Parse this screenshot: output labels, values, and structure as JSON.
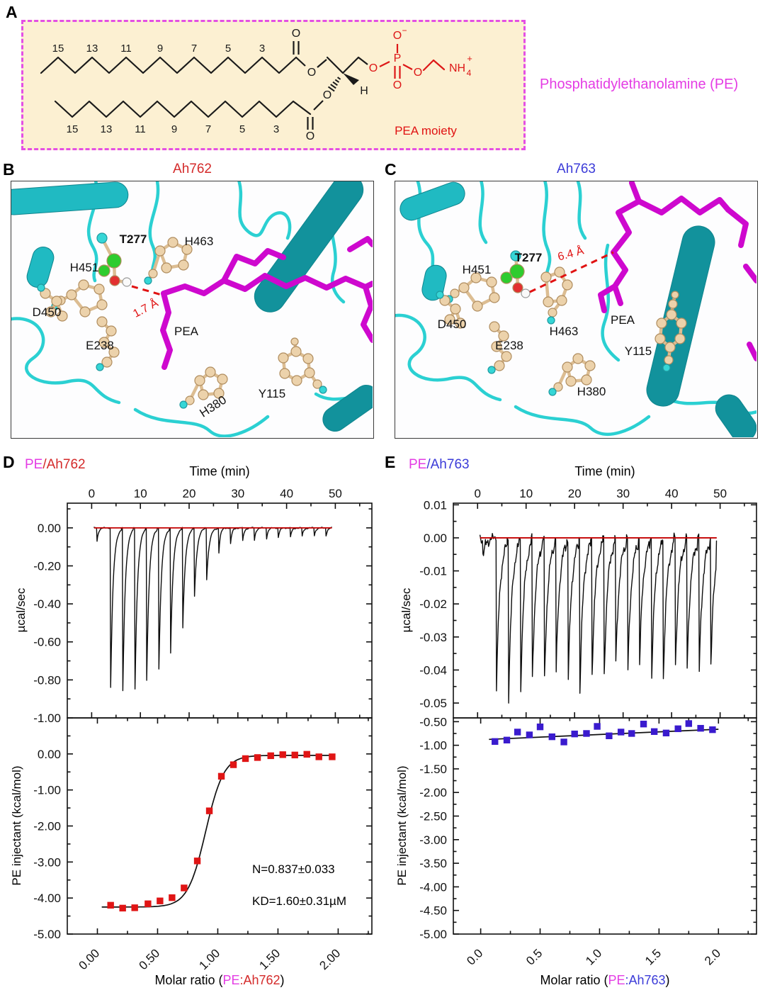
{
  "page": {
    "background": "#ffffff"
  },
  "panels": {
    "a": {
      "label": "A",
      "box_bg": "#fcf0d2",
      "box_border_color": "#e44fe4",
      "caption": "Phosphatidylethanolamine (PE)",
      "caption_color": "#e43ce4",
      "pea_moiety_label": "PEA moiety",
      "pea_label_color": "#e01212",
      "chain_top_numbers": [
        "15",
        "13",
        "11",
        "9",
        "7",
        "5",
        "3"
      ],
      "chain_bottom_numbers": [
        "15",
        "13",
        "11",
        "9",
        "7",
        "5",
        "3"
      ],
      "atoms": {
        "carbonyl_o_top": "O",
        "ester_o_top": "O",
        "ester_o_bottom": "O",
        "carbonyl_o_bottom": "O",
        "stereo_h": "H",
        "phosphate_o_left": "O",
        "phosphate_p": "P",
        "phosphate_o_minus": "O",
        "phosphate_o_minus_charge": "−",
        "phosphate_o_double": "O",
        "phosphate_o_right": "O",
        "amine_base": "NH",
        "amine_sub": "4",
        "amine_charge": "+"
      },
      "structure_color": "#1a1a1a",
      "headgroup_color": "#dd1717"
    },
    "b": {
      "label": "B",
      "title": "Ah762",
      "title_color": "#d42a2a",
      "residues": {
        "h451": "H451",
        "t277": "T277",
        "h463": "H463",
        "d450": "D450",
        "e238": "E238",
        "h380": "H380",
        "y115": "Y115"
      },
      "ligand_label": "PEA",
      "distance_label": "1.7 Å",
      "distance_color": "#e01212"
    },
    "c": {
      "label": "C",
      "title": "Ah763",
      "title_color": "#3b3bd8",
      "residues": {
        "h451": "H451",
        "t277": "T277",
        "h463": "H463",
        "d450": "D450",
        "e238": "E238",
        "h380": "H380",
        "y115": "Y115"
      },
      "ligand_label": "PEA",
      "distance_label": "6.4 Å",
      "distance_color": "#e01212"
    },
    "d": {
      "label": "D",
      "title_pe": "PE",
      "title_rest": "/Ah762",
      "pe_color": "#e43ce4",
      "protein_color": "#d42a2a"
    },
    "e": {
      "label": "E",
      "title_pe": "PE",
      "title_rest": "/Ah763",
      "pe_color": "#e43ce4",
      "protein_color": "#3b3bd8"
    }
  },
  "chart_data": [
    {
      "id": "ah762_thermogram",
      "type": "line",
      "panel": "D-top",
      "xlabel": "Time (min)",
      "ylabel": "µcal/sec",
      "xlim": [
        -5,
        57.5
      ],
      "ylim": [
        0.13,
        -1.0
      ],
      "x_ticks": [
        0,
        10,
        20,
        30,
        40,
        50
      ],
      "x_tick_labels": [
        "0",
        "10",
        "20",
        "30",
        "40",
        "50"
      ],
      "x_minor_ticks": [
        5,
        15,
        25,
        35,
        45,
        55
      ],
      "y_ticks": [
        0,
        -0.2,
        -0.4,
        -0.6,
        -0.8,
        -1.0
      ],
      "y_tick_labels": [
        "0.00",
        "-0.20",
        "-0.40",
        "-0.60",
        "-0.80",
        "-1.00"
      ],
      "y_minor_ticks": [
        0.1,
        -0.1,
        -0.3,
        -0.5,
        -0.7,
        -0.9
      ],
      "injection_times": [
        1.0,
        3.8,
        6.3,
        8.8,
        11.2,
        13.7,
        16.1,
        18.6,
        21.0,
        23.5,
        26.0,
        28.4,
        30.9,
        33.3,
        35.8,
        38.2,
        40.7,
        43.1,
        45.6,
        48.0
      ],
      "peak_depths": [
        -0.07,
        -0.84,
        -0.86,
        -0.85,
        -0.8,
        -0.74,
        -0.66,
        -0.53,
        -0.36,
        -0.27,
        -0.13,
        -0.085,
        -0.07,
        -0.065,
        -0.055,
        -0.05,
        -0.05,
        -0.045,
        -0.04,
        -0.04
      ],
      "baseline_value": 0,
      "baseline_color": "#c40000",
      "trace_color": "#0d0d0d"
    },
    {
      "id": "ah762_isotherm",
      "type": "scatter",
      "panel": "D-bottom",
      "xlabel_parts": {
        "prefix": "Molar ratio (",
        "pe": "PE",
        "rest": ":Ah762",
        "suffix": ")"
      },
      "ylabel": "PE injectant (kcal/mol)",
      "xlim": [
        -0.25,
        2.28
      ],
      "ylim": [
        1.0,
        -5.0
      ],
      "x_ticks": [
        0,
        0.5,
        1.0,
        1.5,
        2.0
      ],
      "x_tick_labels": [
        "0.00",
        "0.50",
        "1.00",
        "1.50",
        "2.00"
      ],
      "x_minor_ticks": [
        0.25,
        0.75,
        1.25,
        1.75,
        2.25
      ],
      "y_ticks": [
        0,
        -1,
        -2,
        -3,
        -4,
        -5
      ],
      "y_tick_labels": [
        "0.00",
        "-1.00",
        "-2.00",
        "-3.00",
        "-4.00",
        "-5.00"
      ],
      "y_minor_ticks": [
        0.5,
        -0.5,
        -1.5,
        -2.5,
        -3.5,
        -4.5
      ],
      "x": [
        0.11,
        0.21,
        0.31,
        0.42,
        0.52,
        0.62,
        0.72,
        0.83,
        0.93,
        1.03,
        1.13,
        1.23,
        1.33,
        1.44,
        1.54,
        1.64,
        1.74,
        1.84,
        1.95
      ],
      "y": [
        -4.2,
        -4.28,
        -4.27,
        -4.16,
        -4.08,
        -3.99,
        -3.72,
        -2.97,
        -1.58,
        -0.62,
        -0.3,
        -0.13,
        -0.1,
        -0.05,
        -0.02,
        -0.03,
        -0.01,
        -0.08,
        -0.08
      ],
      "marker_color": "#e01515",
      "fit_sigmoid": {
        "baseline": -4.25,
        "plateau": -0.04,
        "midpoint": 0.9,
        "rate": 0.075
      },
      "fit_color": "#111111",
      "annotations": [
        "N=0.837±0.033",
        "KD=1.60±0.31µM"
      ]
    },
    {
      "id": "ah763_thermogram",
      "type": "line",
      "panel": "E-top",
      "xlabel": "Time (min)",
      "ylabel": "µcal/sec",
      "xlim": [
        -5,
        57.5
      ],
      "ylim": [
        0.0105,
        -0.0545
      ],
      "x_ticks": [
        0,
        10,
        20,
        30,
        40,
        50
      ],
      "x_tick_labels": [
        "0",
        "10",
        "20",
        "30",
        "40",
        "50"
      ],
      "x_minor_ticks": [
        5,
        15,
        25,
        35,
        45,
        55
      ],
      "y_ticks": [
        0.01,
        0,
        -0.01,
        -0.02,
        -0.03,
        -0.04,
        -0.05
      ],
      "y_tick_labels": [
        "0.01",
        "0.00",
        "-0.01",
        "-0.02",
        "-0.03",
        "-0.04",
        "-0.05"
      ],
      "y_minor_ticks": [
        0.005,
        -0.005,
        -0.015,
        -0.025,
        -0.035,
        -0.045
      ],
      "injection_times": [
        1.0,
        3.8,
        6.3,
        8.8,
        11.2,
        13.7,
        16.1,
        18.6,
        21.0,
        23.5,
        26.0,
        28.4,
        30.9,
        33.3,
        35.8,
        38.2,
        40.7,
        43.1,
        45.6,
        48.0
      ],
      "peak_depths": [
        -0.005,
        -0.045,
        -0.048,
        -0.0455,
        -0.0425,
        -0.0435,
        -0.0405,
        -0.0425,
        -0.046,
        -0.0415,
        -0.042,
        -0.0385,
        -0.0405,
        -0.0385,
        -0.042,
        -0.043,
        -0.0385,
        -0.04,
        -0.0405,
        -0.039
      ],
      "baseline_value": 0,
      "baseline_color": "#c40000",
      "trace_color": "#0d0d0d"
    },
    {
      "id": "ah763_isotherm",
      "type": "scatter",
      "panel": "E-bottom",
      "xlabel_parts": {
        "prefix": "Molar ratio (",
        "pe": "PE",
        "rest": ":Ah763",
        "suffix": ")"
      },
      "ylabel": "PE injectant (kcal/mol)",
      "xlim": [
        -0.23,
        2.32
      ],
      "ylim": [
        -0.42,
        -5.0
      ],
      "x_ticks": [
        0,
        0.5,
        1.0,
        1.5,
        2.0
      ],
      "x_tick_labels": [
        "0.0",
        "0.5",
        "1.0",
        "1.5",
        "2.0"
      ],
      "x_minor_ticks": [
        0.25,
        0.75,
        1.25,
        1.75,
        2.25
      ],
      "y_ticks": [
        -0.5,
        -1.0,
        -1.5,
        -2.0,
        -2.5,
        -3.0,
        -3.5,
        -4.0,
        -4.5,
        -5.0
      ],
      "y_tick_labels": [
        "-0.50",
        "-1.00",
        "-1.50",
        "-2.00",
        "-2.50",
        "-3.00",
        "-3.50",
        "-4.00",
        "-4.50",
        "-5.00"
      ],
      "y_minor_ticks": [
        -0.75,
        -1.25,
        -1.75,
        -2.25,
        -2.75,
        -3.25,
        -3.75,
        -4.25,
        -4.75
      ],
      "x": [
        0.12,
        0.22,
        0.31,
        0.41,
        0.5,
        0.6,
        0.7,
        0.79,
        0.89,
        0.98,
        1.08,
        1.18,
        1.27,
        1.37,
        1.46,
        1.56,
        1.66,
        1.75,
        1.85,
        1.95
      ],
      "y": [
        -0.92,
        -0.89,
        -0.72,
        -0.78,
        -0.61,
        -0.82,
        -0.93,
        -0.76,
        -0.75,
        -0.6,
        -0.8,
        -0.72,
        -0.75,
        -0.55,
        -0.71,
        -0.74,
        -0.65,
        -0.54,
        -0.64,
        -0.67
      ],
      "marker_color": "#3a1bce",
      "fit_line": {
        "x": [
          0.07,
          2.0
        ],
        "y": [
          -0.875,
          -0.66
        ]
      },
      "fit_color": "#111111",
      "annotations": []
    }
  ]
}
